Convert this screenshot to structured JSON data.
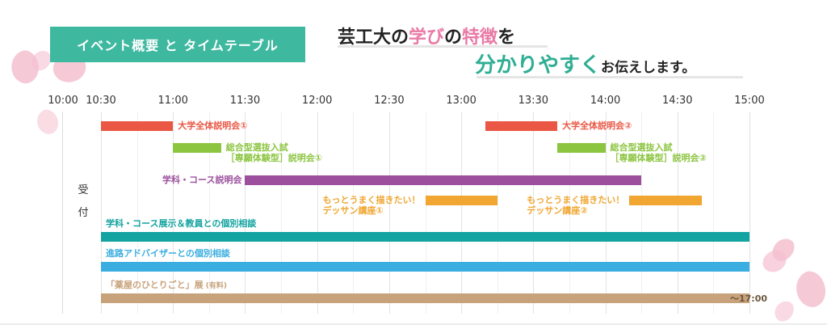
{
  "badge": "イベント概要 と タイムテーブル",
  "headline": {
    "line1": [
      "芸工大の",
      "学び",
      "の",
      "特徴",
      "を"
    ],
    "line2_big": "分かりやすく",
    "line2_small": "お伝えします。"
  },
  "reception": [
    "受",
    "付"
  ],
  "times": [
    "10:00",
    "10:30",
    "11:00",
    "11:30",
    "12:00",
    "12:30",
    "13:00",
    "13:30",
    "14:00",
    "14:30",
    "15:00"
  ],
  "events": [
    {
      "name": "大学全体説明会①",
      "color": "#ea5845",
      "start": "10:30",
      "end": "11:00"
    },
    {
      "name": "大学全体説明会②",
      "color": "#ea5845",
      "start": "13:10",
      "end": "13:40"
    },
    {
      "name": "総合型選抜入試",
      "name2": "［専願体験型］説明会①",
      "color": "#8cc540",
      "start": "11:00",
      "end": "11:20"
    },
    {
      "name": "総合型選抜入試",
      "name2": "［専願体験型］説明会②",
      "color": "#8cc540",
      "start": "13:40",
      "end": "14:00"
    },
    {
      "name": "学科・コース説明会",
      "color": "#9b4f9c",
      "start": "11:30",
      "end": "14:15"
    },
    {
      "name": "もっとうまく描きたい！",
      "name2": "デッサン講座①",
      "color": "#f0a630",
      "start": "12:45",
      "end": "13:15"
    },
    {
      "name": "もっとうまく描きたい！",
      "name2": "デッサン講座②",
      "color": "#f0a630",
      "start": "14:10",
      "end": "14:40"
    },
    {
      "name": "学科・コース展示＆教員との個別相談",
      "color": "#13a3a0",
      "start": "10:30",
      "end": "15:00"
    },
    {
      "name": "進路アドバイザーとの個別相談",
      "color": "#3aaee0",
      "start": "10:30",
      "end": "15:00"
    },
    {
      "name": "「薬屋のひとりごと」展",
      "note": "(有料)",
      "color": "#c8a27a",
      "start": "10:30",
      "end": "15:00",
      "end_label": "～17:00"
    }
  ]
}
